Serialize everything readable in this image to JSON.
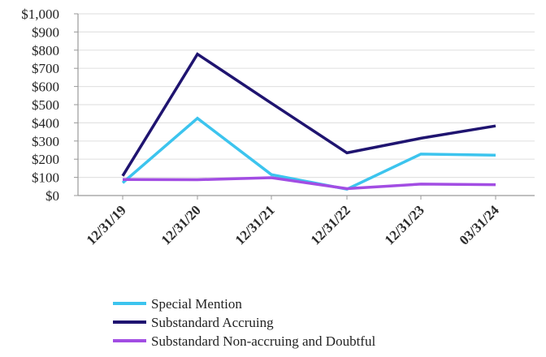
{
  "chart_data": {
    "type": "line",
    "title": "",
    "xlabel": "",
    "ylabel": "",
    "categories": [
      "12/31/19",
      "12/31/20",
      "12/31/21",
      "12/31/22",
      "12/31/23",
      "03/31/24"
    ],
    "y_ticks": [
      "$0",
      "$100",
      "$200",
      "$300",
      "$400",
      "$500",
      "$600",
      "$700",
      "$800",
      "$900",
      "$1,000"
    ],
    "ylim": [
      0,
      1000
    ],
    "grid": true,
    "legend_position": "bottom",
    "series": [
      {
        "name": "Special Mention",
        "color": "#3cc4ee",
        "values": [
          70,
          425,
          115,
          35,
          228,
          222
        ]
      },
      {
        "name": "Substandard Accruing",
        "color": "#1f1470",
        "values": [
          108,
          778,
          508,
          235,
          315,
          383
        ]
      },
      {
        "name": "Substandard Non-accruing and Doubtful",
        "color": "#a24de3",
        "values": [
          88,
          87,
          98,
          38,
          63,
          60
        ]
      }
    ]
  }
}
